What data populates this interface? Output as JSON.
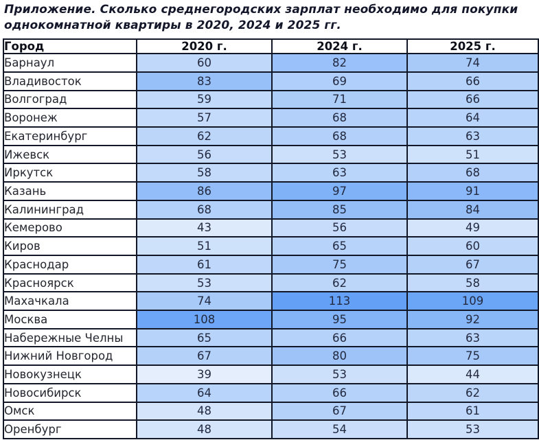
{
  "title": "Приложение. Сколько среднегородских зарплат необходимо для покупки однокомнатной квартиры в 2020, 2024 и 2025 гг.",
  "colors": {
    "heatmap_min": "#e4eefc",
    "heatmap_max": "#64a1f6",
    "border": "#111726",
    "header_bg": "#ffffff",
    "city_column_bg": "#ffffff",
    "title_text": "#14172a",
    "cell_text": "#232a40"
  },
  "chart_data": {
    "type": "table",
    "title": "Приложение. Сколько среднегородских зарплат необходимо для покупки однокомнатной квартиры в 2020, 2024 и 2025 гг.",
    "columns": [
      "Город",
      "2020 г.",
      "2024 г.",
      "2025 г."
    ],
    "year_keys": [
      "2020",
      "2024",
      "2025"
    ],
    "rows": [
      {
        "city": "Барнаул",
        "values": [
          60,
          82,
          74
        ]
      },
      {
        "city": "Владивосток",
        "values": [
          83,
          69,
          66
        ]
      },
      {
        "city": "Волгоград",
        "values": [
          59,
          71,
          66
        ]
      },
      {
        "city": "Воронеж",
        "values": [
          57,
          68,
          64
        ]
      },
      {
        "city": "Екатеринбург",
        "values": [
          62,
          68,
          63
        ]
      },
      {
        "city": "Ижевск",
        "values": [
          56,
          53,
          51
        ]
      },
      {
        "city": "Иркутск",
        "values": [
          58,
          63,
          68
        ]
      },
      {
        "city": "Казань",
        "values": [
          86,
          97,
          91
        ]
      },
      {
        "city": "Калининград",
        "values": [
          68,
          85,
          84
        ]
      },
      {
        "city": "Кемерово",
        "values": [
          43,
          56,
          49
        ]
      },
      {
        "city": "Киров",
        "values": [
          51,
          65,
          60
        ]
      },
      {
        "city": "Краснодар",
        "values": [
          61,
          75,
          67
        ]
      },
      {
        "city": "Красноярск",
        "values": [
          53,
          62,
          58
        ]
      },
      {
        "city": "Махачкала",
        "values": [
          74,
          113,
          109
        ]
      },
      {
        "city": "Москва",
        "values": [
          108,
          95,
          92
        ]
      },
      {
        "city": "Набережные Челны",
        "values": [
          65,
          66,
          63
        ]
      },
      {
        "city": "Нижний Новгород",
        "values": [
          67,
          80,
          75
        ]
      },
      {
        "city": "Новокузнецк",
        "values": [
          39,
          53,
          44
        ]
      },
      {
        "city": "Новосибирск",
        "values": [
          64,
          66,
          62
        ]
      },
      {
        "city": "Омск",
        "values": [
          48,
          67,
          61
        ]
      },
      {
        "city": "Оренбург",
        "values": [
          48,
          54,
          53
        ]
      }
    ],
    "heatmap": {
      "min_value": 39,
      "max_value": 113
    },
    "layout": {
      "grid": true,
      "header_row": true,
      "value_alignment": "center",
      "city_alignment": "left"
    }
  }
}
